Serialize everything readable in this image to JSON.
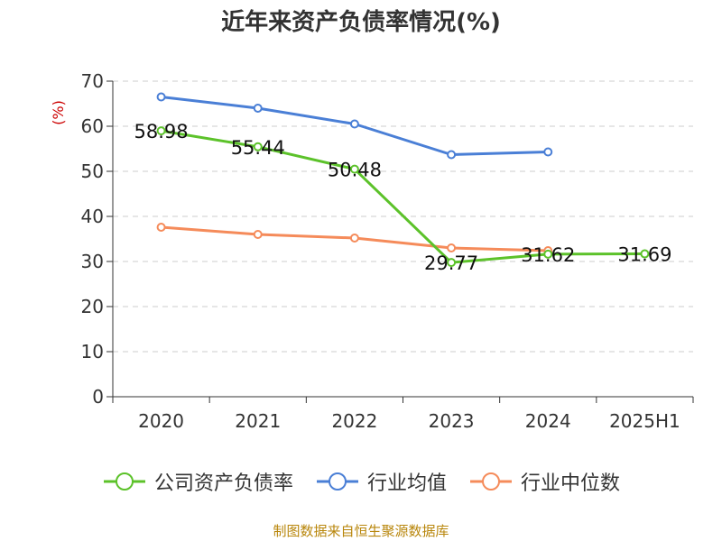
{
  "chart_data": {
    "type": "line",
    "title": "近年来资产负债率情况(%)",
    "ylabel": "(%)",
    "xlabel": "",
    "categories": [
      "2020",
      "2021",
      "2022",
      "2023",
      "2024",
      "2025H1"
    ],
    "ylim": [
      0,
      70
    ],
    "yticks": [
      0,
      10,
      20,
      30,
      40,
      50,
      60,
      70
    ],
    "grid": true,
    "legend_position": "bottom",
    "series": [
      {
        "name": "公司资产负债率",
        "color": "#5cc22a",
        "values": [
          58.98,
          55.44,
          50.48,
          29.77,
          31.62,
          31.69
        ],
        "data_labels": [
          "58.98",
          "55.44",
          "50.48",
          "29.77",
          "31.62",
          "31.69"
        ]
      },
      {
        "name": "行业均值",
        "color": "#4a7fd6",
        "values": [
          66.5,
          64.0,
          60.5,
          53.7,
          54.3,
          null
        ]
      },
      {
        "name": "行业中位数",
        "color": "#f58b5a",
        "values": [
          37.6,
          36.0,
          35.2,
          33.0,
          32.4,
          null
        ]
      }
    ]
  },
  "footer": {
    "source": "制图数据来自恒生聚源数据库"
  }
}
